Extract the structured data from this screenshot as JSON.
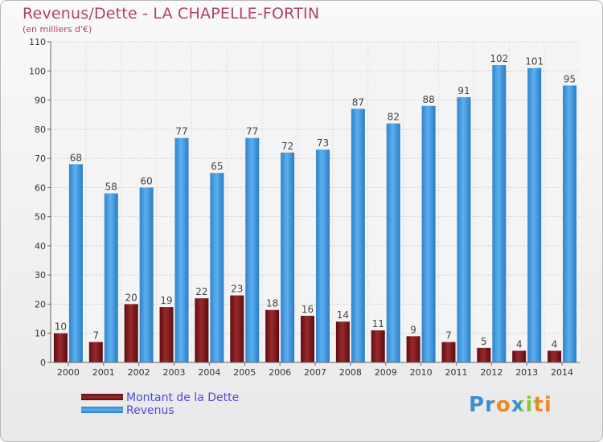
{
  "header": {
    "title": "Revenus/Dette - LA CHAPELLE-FORTIN",
    "subtitle": "(en milliers d'€)"
  },
  "legend": {
    "debt_label": "Montant de la Dette",
    "revenue_label": "Revenus"
  },
  "logo": {
    "text": "Proxiti"
  },
  "colors": {
    "debt": "#7a1518",
    "revenue": "#3f97dd",
    "title": "#b0406e",
    "legend_text": "#4c4cd8"
  },
  "chart_data": {
    "type": "bar",
    "categories": [
      "2000",
      "2001",
      "2002",
      "2003",
      "2004",
      "2005",
      "2006",
      "2007",
      "2008",
      "2009",
      "2010",
      "2011",
      "2012",
      "2013",
      "2014"
    ],
    "series": [
      {
        "name": "Montant de la Dette",
        "values": [
          10,
          7,
          20,
          19,
          22,
          23,
          18,
          16,
          14,
          11,
          9,
          7,
          5,
          4,
          4
        ]
      },
      {
        "name": "Revenus",
        "values": [
          68,
          58,
          60,
          77,
          65,
          77,
          72,
          73,
          87,
          82,
          88,
          91,
          102,
          101,
          95
        ]
      }
    ],
    "yticks": [
      0,
      10,
      20,
      30,
      40,
      50,
      60,
      70,
      80,
      90,
      100,
      110
    ],
    "ylim": [
      0,
      110
    ],
    "grid": true,
    "legend_position": "bottom-left"
  }
}
